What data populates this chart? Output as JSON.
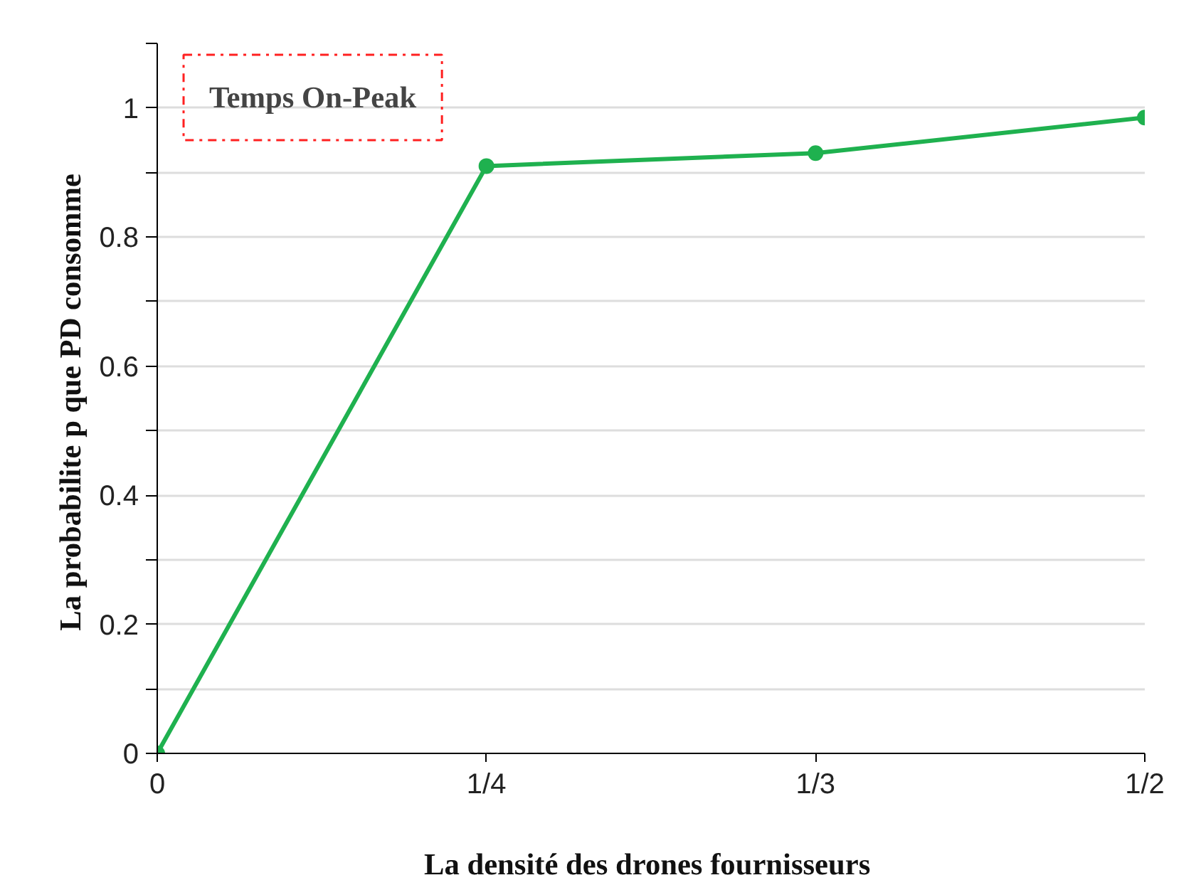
{
  "chart_data": {
    "type": "line",
    "xlabel": "La densité  des drones fournisseurs",
    "ylabel": "La probabilite p que PD  consomme",
    "categories": [
      "0",
      "1/4",
      "1/3",
      "1/2"
    ],
    "series": [
      {
        "color": "#1fb14f",
        "values": [
          0,
          0.91,
          0.93,
          0.985
        ]
      }
    ],
    "ylim": [
      0,
      1.1
    ],
    "yticks": [
      0,
      {
        "value": 0.1,
        "label": null
      },
      0.2,
      {
        "value": 0.3,
        "label": null
      },
      0.4,
      {
        "value": 0.5,
        "label": null
      },
      0.6,
      {
        "value": 0.7,
        "label": null
      },
      0.8,
      {
        "value": 0.9,
        "label": null
      },
      1,
      {
        "value": 1.1,
        "label": null
      }
    ],
    "grid": "y",
    "marker": "circle",
    "line_style": "solid",
    "annotations": [
      "Temps On-Peak"
    ]
  }
}
